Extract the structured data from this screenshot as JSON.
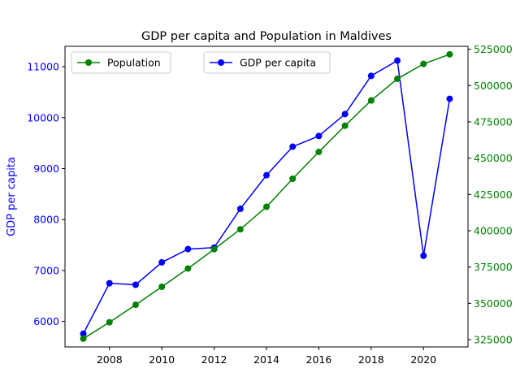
{
  "chart_data": {
    "type": "line",
    "title": "GDP per capita and Population in Maldives",
    "xlabel": "",
    "ylabel_left": "GDP per capita",
    "ylabel_right": "",
    "x": [
      2007,
      2008,
      2009,
      2010,
      2011,
      2012,
      2013,
      2014,
      2015,
      2016,
      2017,
      2018,
      2019,
      2020,
      2021
    ],
    "xlim": [
      2006.3,
      2021.7
    ],
    "xticks": [
      2008,
      2010,
      2012,
      2014,
      2016,
      2018,
      2020
    ],
    "y_left": {
      "lim": [
        5500,
        11400
      ],
      "ticks": [
        6000,
        7000,
        8000,
        9000,
        10000,
        11000
      ],
      "color": "#0000ff"
    },
    "y_right": {
      "lim": [
        320000,
        527000
      ],
      "ticks": [
        325000,
        350000,
        375000,
        400000,
        425000,
        450000,
        475000,
        500000,
        525000
      ],
      "color": "#008000"
    },
    "series": [
      {
        "name": "GDP per capita",
        "axis": "left",
        "color": "#0000ff",
        "marker": "circle",
        "values": [
          5760,
          6750,
          6720,
          7160,
          7420,
          7450,
          8210,
          8870,
          9430,
          9640,
          10070,
          10820,
          11120,
          7290,
          10370
        ]
      },
      {
        "name": "Population",
        "axis": "right",
        "color": "#008000",
        "marker": "circle",
        "values": [
          325700,
          337000,
          349000,
          361400,
          374000,
          387300,
          401000,
          416500,
          435800,
          454300,
          472300,
          489700,
          504600,
          514900,
          521500
        ]
      }
    ],
    "legends": [
      {
        "placement": "upper-left",
        "entries": [
          "Population"
        ]
      },
      {
        "placement": "upper-center",
        "entries": [
          "GDP per capita"
        ]
      }
    ],
    "grid": false
  }
}
